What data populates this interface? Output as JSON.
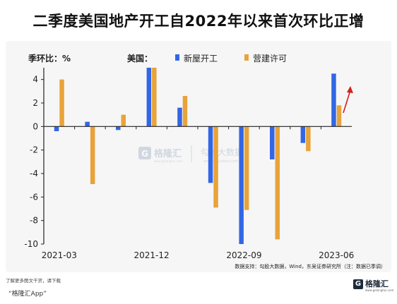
{
  "title": "二季度美国地产开工自2022年以来首次环比正增",
  "chart_data": {
    "type": "bar",
    "unit_label": "季环比：%",
    "legend_prefix": "美国：",
    "categories": [
      "2021-03",
      "2021-06",
      "2021-09",
      "2021-12",
      "2022-03",
      "2022-06",
      "2022-09",
      "2022-12",
      "2023-03",
      "2023-06"
    ],
    "x_tick_labels": [
      "2021-03",
      "2021-12",
      "2022-09",
      "2023-06"
    ],
    "x_tick_indices": [
      0,
      3,
      6,
      9
    ],
    "series": [
      {
        "name": "新屋开工",
        "color": "#3366e6",
        "values": [
          -0.4,
          0.4,
          -0.3,
          5.0,
          1.6,
          -4.8,
          -10.0,
          -2.8,
          -1.4,
          4.5
        ]
      },
      {
        "name": "营建许可",
        "color": "#e8a33a",
        "values": [
          4.0,
          -4.9,
          1.0,
          5.0,
          2.6,
          -6.9,
          -7.1,
          -9.6,
          -2.1,
          1.8
        ]
      }
    ],
    "ylim": [
      -10,
      5
    ],
    "yticks": [
      4,
      2,
      0,
      -2,
      -4,
      -6,
      -8,
      -10
    ],
    "legend_position": "top",
    "annotation": "red upward arrow near 2023-06",
    "source": "数据支持：勾股大数据，Wind，东吴证券研究所（注：数据已季调）"
  },
  "watermark": {
    "brand": "格隆汇",
    "brand_sub": "www.gelonghui.com",
    "secondary": "勾股大数据",
    "secondary_sub": "www.gogudata.com"
  },
  "footer": {
    "hint": "了解更多图文干货，请下载",
    "app": "“格隆汇App”",
    "logo_text": "格隆汇",
    "logo_sub": "www.gelonghui.com",
    "logo_mark": "G"
  },
  "colors": {
    "arrow": "#d42020",
    "axis": "#222222",
    "panel": "#f6f6f6"
  }
}
